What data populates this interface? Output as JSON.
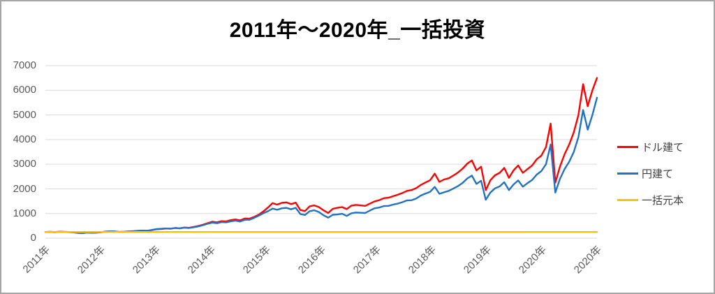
{
  "frame": {
    "background": "#FFFFFF",
    "border_color": "#A6A6A6"
  },
  "chart_data": {
    "type": "line",
    "title": "2011年〜2020年_一括投資",
    "xlabel": "",
    "ylabel": "",
    "ylim": [
      0,
      7000
    ],
    "y_ticks": [
      0,
      1000,
      2000,
      3000,
      4000,
      5000,
      6000,
      7000
    ],
    "x_tick_labels": [
      "2011年",
      "2012年",
      "2013年",
      "2014年",
      "2015年",
      "2016年",
      "2017年",
      "2018年",
      "2019年",
      "2020年",
      "2020年"
    ],
    "x_note": "monthly points, Jan 2011 - Dec 2020",
    "grid": true,
    "legend_position": "right",
    "colors": {
      "grid": "#D9D9D9",
      "axis_text": "#595959",
      "legend_text": "#404040",
      "title_text": "#000000"
    },
    "series": [
      {
        "name": "ドル建て",
        "color": "#FF0000",
        "values": [
          250,
          256,
          250,
          262,
          256,
          248,
          240,
          215,
          205,
          232,
          220,
          228,
          244,
          266,
          278,
          270,
          252,
          262,
          274,
          284,
          298,
          306,
          300,
          330,
          360,
          372,
          390,
          382,
          412,
          400,
          432,
          420,
          455,
          495,
          545,
          610,
          665,
          640,
          690,
          680,
          730,
          760,
          720,
          800,
          790,
          860,
          950,
          1080,
          1240,
          1420,
          1360,
          1430,
          1450,
          1380,
          1440,
          1140,
          1100,
          1290,
          1330,
          1260,
          1130,
          1020,
          1190,
          1230,
          1260,
          1180,
          1320,
          1350,
          1330,
          1310,
          1400,
          1490,
          1540,
          1620,
          1640,
          1700,
          1760,
          1830,
          1920,
          1950,
          2030,
          2160,
          2260,
          2350,
          2620,
          2280,
          2380,
          2430,
          2540,
          2660,
          2820,
          3020,
          3150,
          2750,
          2900,
          1950,
          2350,
          2550,
          2650,
          2850,
          2450,
          2750,
          2950,
          2650,
          2800,
          2950,
          3200,
          3350,
          3700,
          4650,
          2250,
          2900,
          3400,
          3800,
          4300,
          5000,
          6250,
          5350,
          6000,
          6500
        ]
      },
      {
        "name": "円建て",
        "color": "#2272C3",
        "values": [
          250,
          252,
          242,
          255,
          250,
          244,
          236,
          210,
          200,
          225,
          215,
          222,
          238,
          262,
          278,
          272,
          250,
          256,
          268,
          276,
          295,
          300,
          298,
          335,
          368,
          380,
          395,
          385,
          415,
          395,
          425,
          410,
          440,
          475,
          525,
          585,
          630,
          605,
          650,
          640,
          680,
          710,
          675,
          745,
          745,
          820,
          910,
          1010,
          1090,
          1200,
          1150,
          1210,
          1230,
          1170,
          1230,
          980,
          940,
          1090,
          1130,
          1060,
          930,
          830,
          950,
          960,
          990,
          900,
          1010,
          1040,
          1030,
          1020,
          1120,
          1210,
          1240,
          1300,
          1310,
          1360,
          1400,
          1460,
          1530,
          1540,
          1610,
          1730,
          1810,
          1880,
          2080,
          1800,
          1860,
          1920,
          2010,
          2110,
          2240,
          2420,
          2540,
          2200,
          2330,
          1560,
          1850,
          2020,
          2100,
          2270,
          1950,
          2180,
          2340,
          2090,
          2230,
          2360,
          2580,
          2720,
          3000,
          3800,
          1850,
          2400,
          2800,
          3100,
          3500,
          4100,
          5200,
          4400,
          5000,
          5700
        ]
      },
      {
        "name": "一括元本",
        "color": "#FFC000",
        "constant_value": 250
      }
    ]
  }
}
